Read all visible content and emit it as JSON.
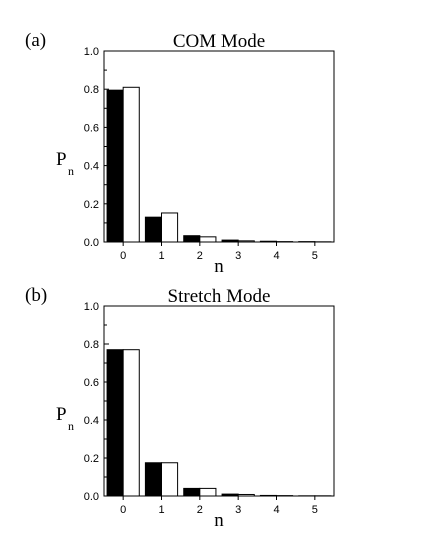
{
  "chart_data": [
    {
      "type": "bar",
      "panel_label": "(a)",
      "title": "COM Mode",
      "xlabel": "n",
      "ylabel": "P",
      "ylabel_sub": "n",
      "categories": [
        "0",
        "1",
        "2",
        "3",
        "4",
        "5"
      ],
      "ylim": [
        0,
        1.0
      ],
      "yticks": [
        "0.0",
        "0.2",
        "0.4",
        "0.6",
        "0.8",
        "1.0"
      ],
      "grid": false,
      "series": [
        {
          "color": "#000000",
          "values": [
            0.795,
            0.13,
            0.033,
            0.01,
            0.004,
            0.002
          ]
        },
        {
          "color": "#ffffff",
          "values": [
            0.81,
            0.152,
            0.027,
            0.006,
            0.002,
            0.001
          ]
        }
      ]
    },
    {
      "type": "bar",
      "panel_label": "(b)",
      "title": "Stretch Mode",
      "xlabel": "n",
      "ylabel": "P",
      "ylabel_sub": "n",
      "categories": [
        "0",
        "1",
        "2",
        "3",
        "4",
        "5"
      ],
      "ylim": [
        0,
        1.0
      ],
      "yticks": [
        "0.0",
        "0.2",
        "0.4",
        "0.6",
        "0.8",
        "1.0"
      ],
      "grid": false,
      "series": [
        {
          "color": "#000000",
          "values": [
            0.77,
            0.175,
            0.04,
            0.01,
            0.003,
            0.001
          ]
        },
        {
          "color": "#ffffff",
          "values": [
            0.77,
            0.175,
            0.04,
            0.008,
            0.002,
            0.001
          ]
        }
      ]
    }
  ]
}
